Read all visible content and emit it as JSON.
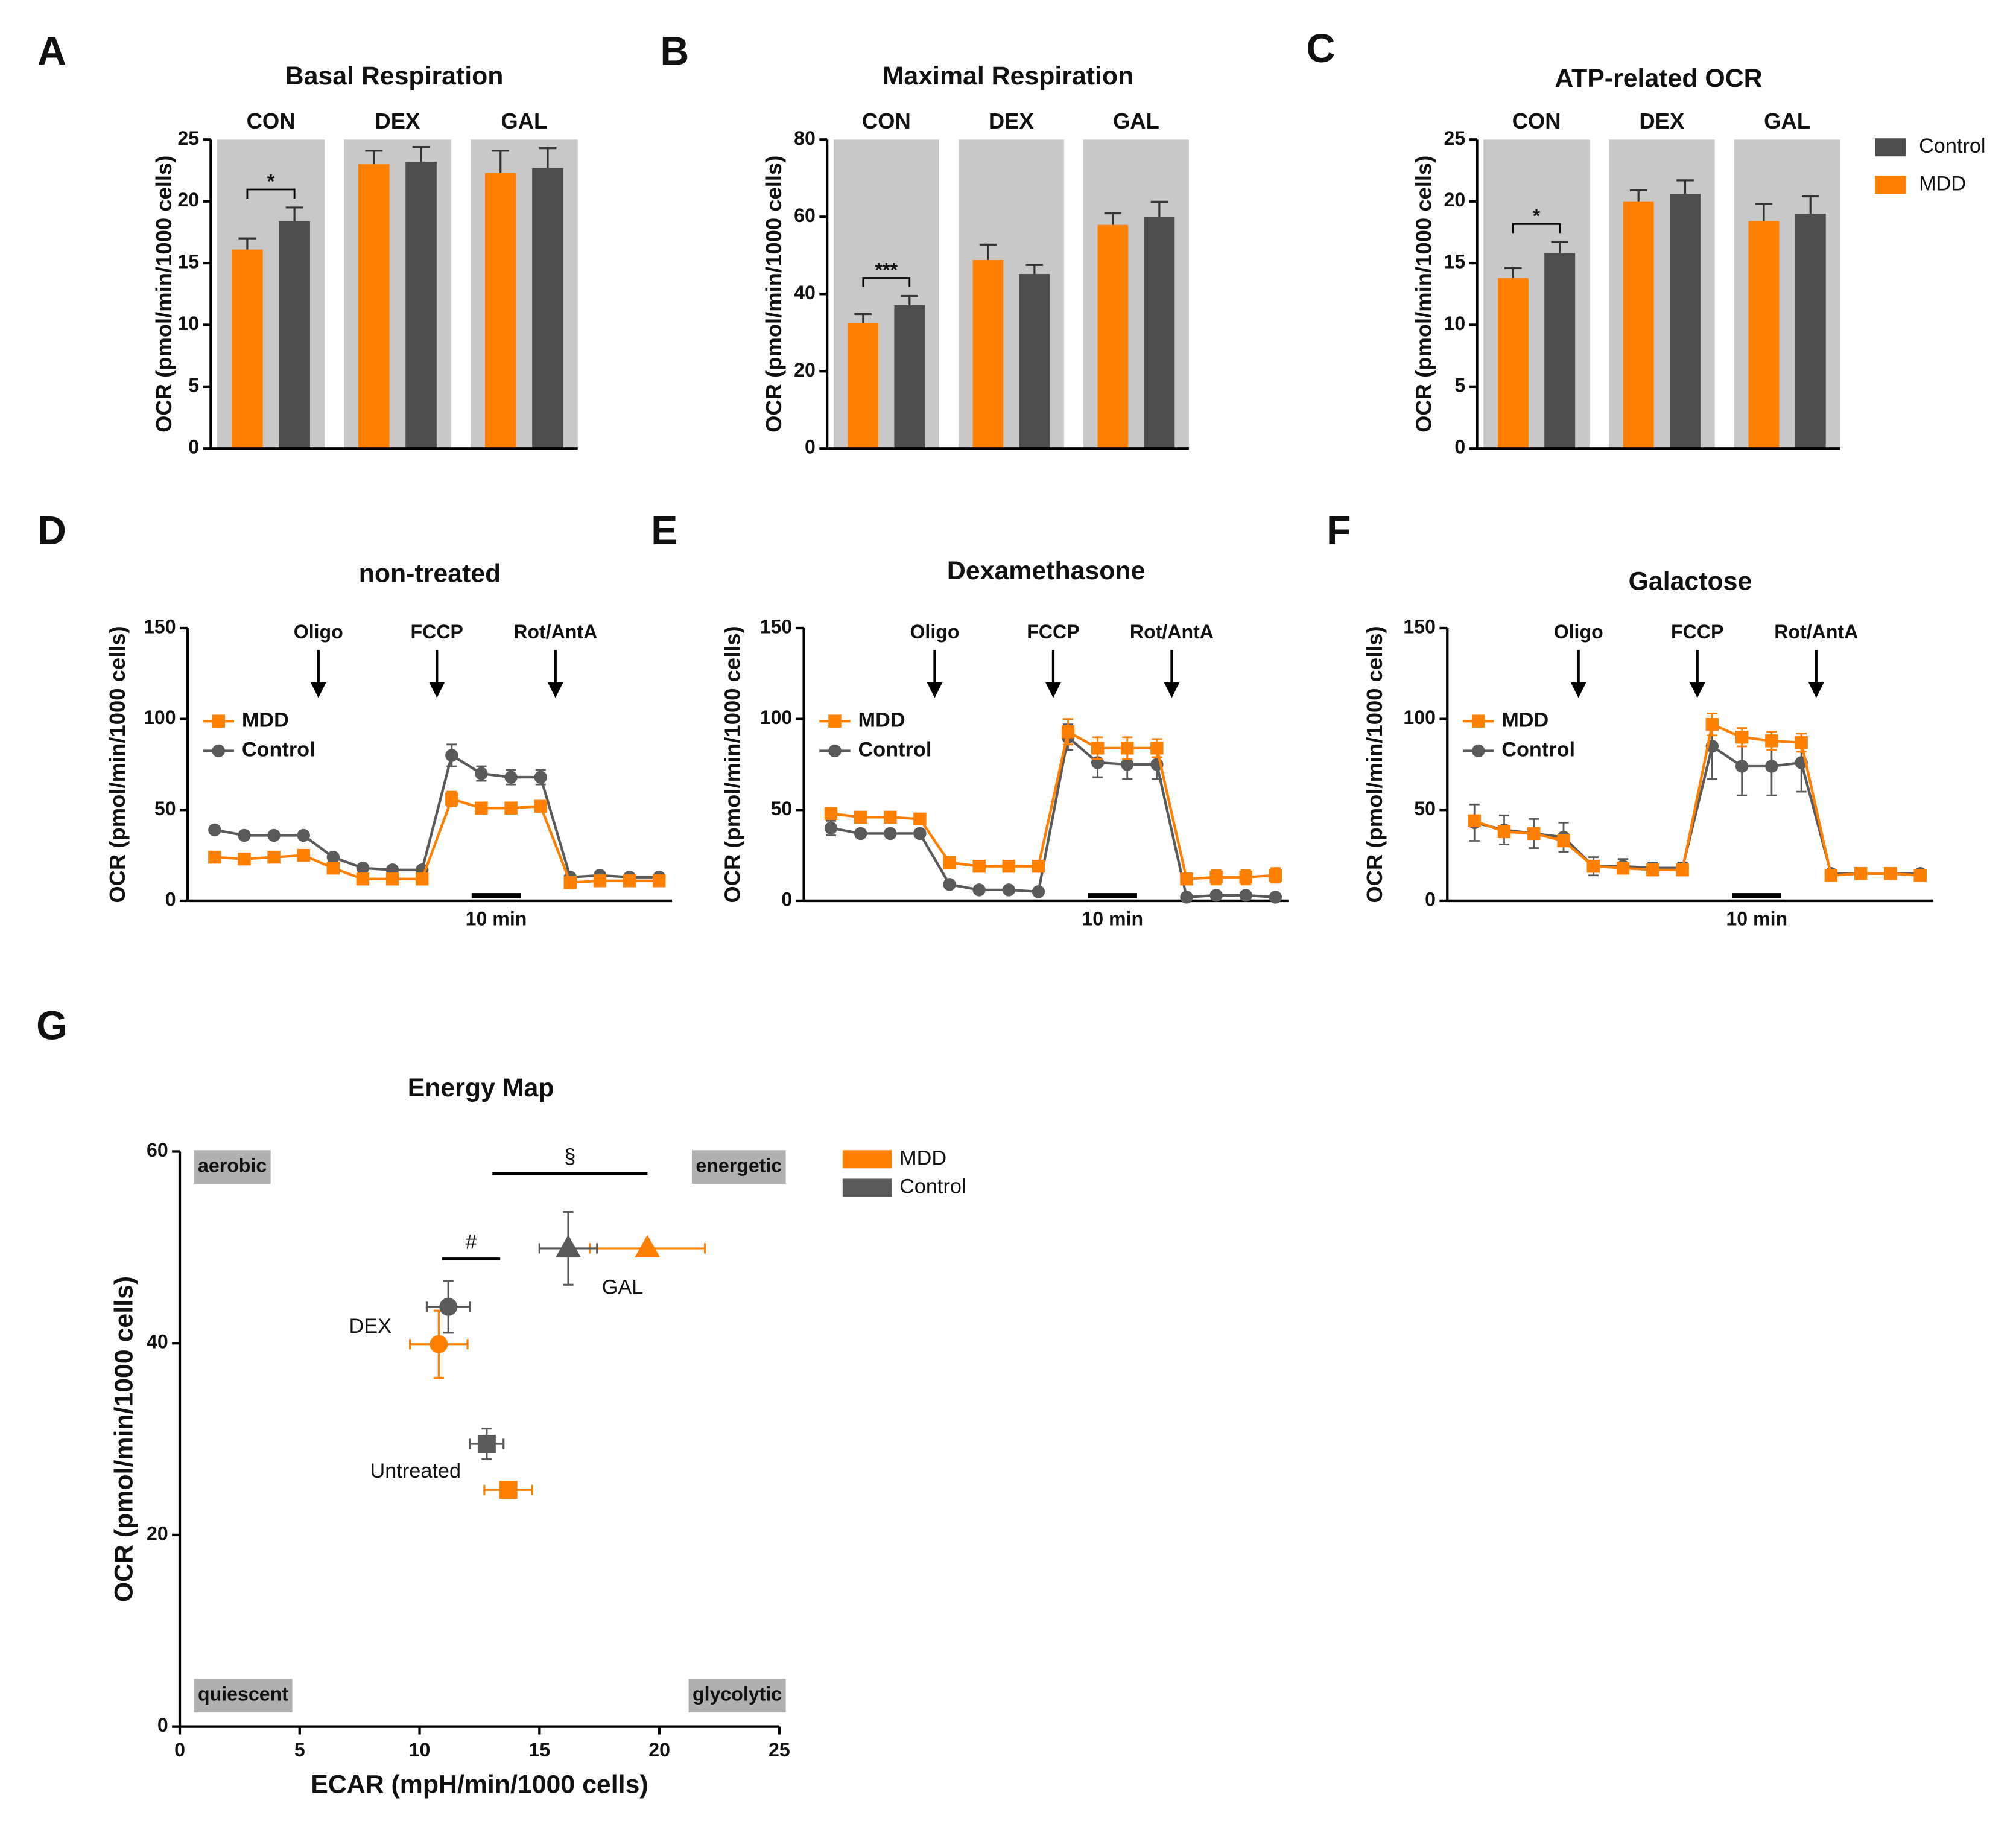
{
  "chart_data": [
    {
      "panel": "A",
      "type": "grouped_bar",
      "title": "Basal Respiration",
      "ylabel": "OCR (pmol/min/1000 cells)",
      "groups": [
        "CON",
        "DEX",
        "GAL"
      ],
      "series": [
        {
          "name": "MDD",
          "color": "#ff8000",
          "values": [
            16.1,
            23.0,
            22.3
          ],
          "errors": [
            0.9,
            1.1,
            1.8
          ]
        },
        {
          "name": "Control",
          "color": "#4d4d4d",
          "values": [
            18.4,
            23.2,
            22.7
          ],
          "errors": [
            1.1,
            1.2,
            1.6
          ]
        }
      ],
      "ylim": [
        0,
        25
      ],
      "yticks": [
        0,
        5,
        10,
        15,
        20,
        25
      ],
      "group_background": "#c8c8c8",
      "annotations": [
        {
          "group": "CON",
          "text": "*"
        }
      ]
    },
    {
      "panel": "B",
      "type": "grouped_bar",
      "title": "Maximal Respiration",
      "ylabel": "OCR (pmol/min/1000 cells)",
      "groups": [
        "CON",
        "DEX",
        "GAL"
      ],
      "series": [
        {
          "name": "MDD",
          "color": "#ff8000",
          "values": [
            32.4,
            48.8,
            57.9
          ],
          "errors": [
            2.4,
            4.0,
            3.0
          ]
        },
        {
          "name": "Control",
          "color": "#4d4d4d",
          "values": [
            37.1,
            45.2,
            59.9
          ],
          "errors": [
            2.4,
            2.3,
            4.0
          ]
        }
      ],
      "ylim": [
        0,
        80
      ],
      "yticks": [
        0,
        20,
        40,
        60,
        80
      ],
      "group_background": "#c8c8c8",
      "annotations": [
        {
          "group": "CON",
          "text": "***"
        }
      ]
    },
    {
      "panel": "C",
      "type": "grouped_bar",
      "title": "ATP-related OCR",
      "ylabel": "OCR (pmol/min/1000 cells)",
      "groups": [
        "CON",
        "DEX",
        "GAL"
      ],
      "series": [
        {
          "name": "MDD",
          "color": "#ff8000",
          "values": [
            13.8,
            20.0,
            18.4
          ],
          "errors": [
            0.8,
            0.9,
            1.4
          ]
        },
        {
          "name": "Control",
          "color": "#4d4d4d",
          "values": [
            15.8,
            20.6,
            19.0
          ],
          "errors": [
            0.9,
            1.1,
            1.4
          ]
        }
      ],
      "ylim": [
        0,
        25
      ],
      "yticks": [
        0,
        5,
        10,
        15,
        20,
        25
      ],
      "group_background": "#c8c8c8",
      "annotations": [
        {
          "group": "CON",
          "text": "*"
        }
      ],
      "legend": "right"
    },
    {
      "panel": "D",
      "type": "line",
      "title": "non-treated",
      "ylabel": "OCR (pmol/min/1000 cells)",
      "categories": [
        null,
        null,
        null,
        null,
        null,
        null,
        null,
        null,
        null,
        null,
        null,
        null,
        null,
        null,
        null,
        null
      ],
      "series": [
        {
          "name": "MDD",
          "color": "#ff8000",
          "marker": "square",
          "values": [
            24,
            23,
            24,
            25,
            18,
            12,
            12,
            12,
            56,
            51,
            51,
            52,
            10,
            11,
            11,
            11
          ],
          "errors": [
            1,
            1,
            1,
            1,
            1,
            1,
            1,
            1,
            4,
            2,
            2,
            2,
            1,
            1,
            1,
            1
          ]
        },
        {
          "name": "Control",
          "color": "#5a5a5a",
          "marker": "circle",
          "values": [
            39,
            36,
            36,
            36,
            24,
            18,
            17,
            17,
            80,
            70,
            68,
            68,
            13,
            14,
            13,
            13
          ],
          "errors": [
            1,
            1,
            1,
            1,
            1,
            1,
            1,
            1,
            6,
            4,
            4,
            4,
            1,
            1,
            1,
            1
          ]
        }
      ],
      "ylim": [
        0,
        150
      ],
      "yticks": [
        0,
        50,
        100,
        150
      ],
      "injections": [
        "Oligo",
        "FCCP",
        "Rot/AntA"
      ],
      "scale_bar": "10 min",
      "legend": "upper left"
    },
    {
      "panel": "E",
      "type": "line",
      "title": "Dexamethasone",
      "ylabel": "OCR (pmol/min/1000 cells)",
      "categories": [
        null,
        null,
        null,
        null,
        null,
        null,
        null,
        null,
        null,
        null,
        null,
        null,
        null,
        null,
        null,
        null
      ],
      "series": [
        {
          "name": "MDD",
          "color": "#ff8000",
          "marker": "square",
          "values": [
            48,
            46,
            46,
            45,
            21,
            19,
            19,
            19,
            93,
            84,
            84,
            84,
            12,
            13,
            13,
            14
          ],
          "errors": [
            2,
            2,
            2,
            2,
            3,
            3,
            3,
            3,
            7,
            6,
            6,
            5,
            3,
            4,
            4,
            4
          ]
        },
        {
          "name": "Control",
          "color": "#5a5a5a",
          "marker": "circle",
          "values": [
            40,
            37,
            37,
            37,
            9,
            6,
            6,
            5,
            90,
            76,
            75,
            75,
            2,
            3,
            3,
            2
          ],
          "errors": [
            4,
            2,
            2,
            2,
            1,
            1,
            1,
            1,
            7,
            8,
            8,
            8,
            1,
            1,
            1,
            1
          ]
        }
      ],
      "ylim": [
        0,
        150
      ],
      "yticks": [
        0,
        50,
        100,
        150
      ],
      "injections": [
        "Oligo",
        "FCCP",
        "Rot/AntA"
      ],
      "scale_bar": "10 min",
      "legend": "upper left"
    },
    {
      "panel": "F",
      "type": "line",
      "title": "Galactose",
      "ylabel": "OCR (pmol/min/1000 cells)",
      "categories": [
        null,
        null,
        null,
        null,
        null,
        null,
        null,
        null,
        null,
        null,
        null,
        null,
        null,
        null,
        null,
        null
      ],
      "series": [
        {
          "name": "MDD",
          "color": "#ff8000",
          "marker": "square",
          "values": [
            44,
            38,
            37,
            33,
            19,
            18,
            17,
            17,
            97,
            90,
            88,
            87,
            14,
            15,
            15,
            14
          ],
          "errors": [
            3,
            3,
            3,
            3,
            3,
            3,
            2,
            2,
            6,
            5,
            5,
            5,
            2,
            2,
            2,
            2
          ]
        },
        {
          "name": "Control",
          "color": "#5a5a5a",
          "marker": "circle",
          "values": [
            43,
            39,
            37,
            35,
            19,
            19,
            18,
            18,
            85,
            74,
            74,
            76,
            15,
            15,
            15,
            15
          ],
          "errors": [
            10,
            8,
            8,
            8,
            5,
            4,
            3,
            3,
            18,
            16,
            16,
            16,
            2,
            2,
            2,
            2
          ]
        }
      ],
      "ylim": [
        0,
        150
      ],
      "yticks": [
        0,
        50,
        100,
        150
      ],
      "injections": [
        "Oligo",
        "FCCP",
        "Rot/AntA"
      ],
      "scale_bar": "10 min",
      "legend": "upper left"
    },
    {
      "panel": "G",
      "type": "scatter",
      "title": "Energy Map",
      "xlabel": "ECAR (mpH/min/1000 cells)",
      "ylabel": "OCR (pmol/min/1000 cells)",
      "point_labels": [
        "Untreated",
        "DEX",
        "GAL"
      ],
      "markers": [
        "square",
        "circle",
        "triangle"
      ],
      "series": [
        {
          "name": "MDD",
          "color": "#ff8000",
          "x": [
            13.7,
            10.8,
            19.5
          ],
          "y": [
            24.7,
            39.9,
            49.9
          ],
          "xerr": [
            1.0,
            1.2,
            2.4
          ],
          "yerr": [
            0.6,
            3.5,
            0.3
          ]
        },
        {
          "name": "Control",
          "color": "#5a5a5a",
          "x": [
            12.8,
            11.2,
            16.2
          ],
          "y": [
            29.5,
            43.8,
            49.9
          ],
          "xerr": [
            0.7,
            0.9,
            1.2
          ],
          "yerr": [
            1.6,
            2.7,
            3.8
          ]
        }
      ],
      "xlim": [
        0,
        25
      ],
      "xticks": [
        0,
        5,
        10,
        15,
        20,
        25
      ],
      "ylim": [
        0,
        60
      ],
      "yticks": [
        0,
        20,
        40,
        60
      ],
      "quadrants": [
        "aerobic",
        "energetic",
        "quiescent",
        "glycolytic"
      ],
      "annotations": [
        "#",
        "§"
      ],
      "legend": "right"
    }
  ]
}
